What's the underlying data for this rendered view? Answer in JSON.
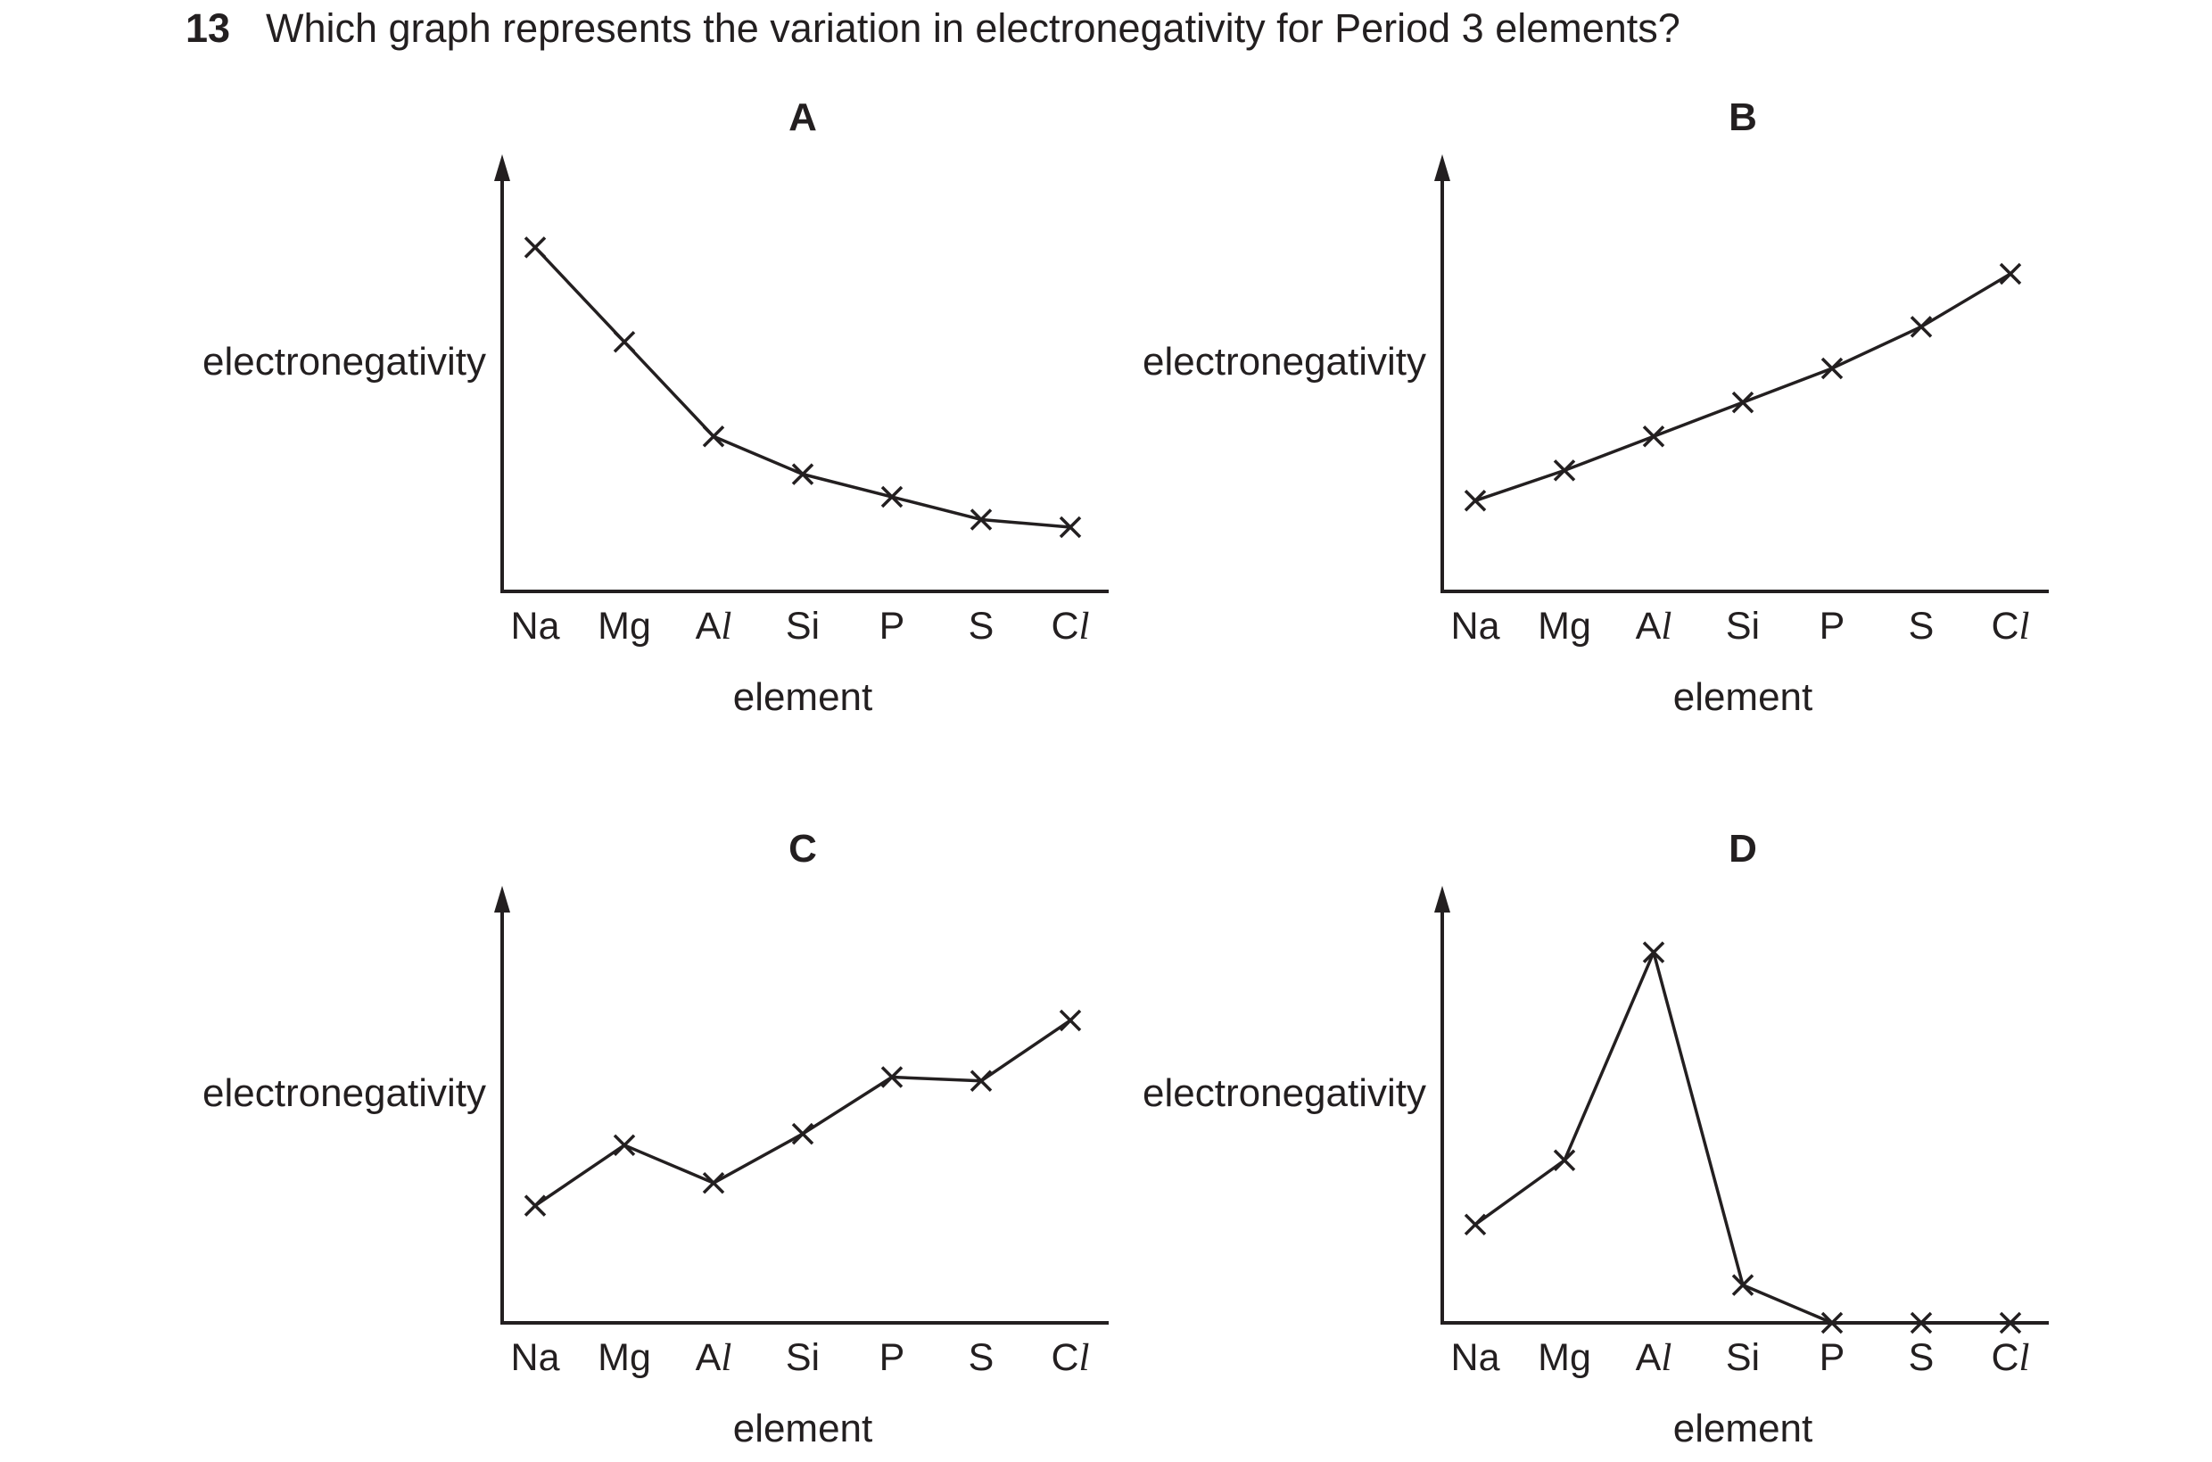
{
  "question": {
    "number": "13",
    "text": "Which graph represents the variation in electronegativity for Period 3 elements?"
  },
  "chart_data": [
    {
      "type": "line",
      "title": "A",
      "ylabel": "electronegativity",
      "xlabel": "element",
      "categories": [
        "Na",
        "Mg",
        "Al",
        "Si",
        "P",
        "S",
        "Cl"
      ],
      "values": [
        9.1,
        6.6,
        4.1,
        3.1,
        2.5,
        1.9,
        1.7
      ],
      "ylim": [
        0,
        10.5
      ]
    },
    {
      "type": "line",
      "title": "B",
      "ylabel": "electronegativity",
      "xlabel": "element",
      "categories": [
        "Na",
        "Mg",
        "Al",
        "Si",
        "P",
        "S",
        "Cl"
      ],
      "values": [
        2.4,
        3.2,
        4.1,
        5.0,
        5.9,
        7.0,
        8.4
      ],
      "ylim": [
        0,
        10.5
      ]
    },
    {
      "type": "line",
      "title": "C",
      "ylabel": "electronegativity",
      "xlabel": "element",
      "categories": [
        "Na",
        "Mg",
        "Al",
        "Si",
        "P",
        "S",
        "Cl"
      ],
      "values": [
        3.1,
        4.7,
        3.7,
        5.0,
        6.5,
        6.4,
        8.0
      ],
      "ylim": [
        0,
        10.5
      ]
    },
    {
      "type": "line",
      "title": "D",
      "ylabel": "electronegativity",
      "xlabel": "element",
      "categories": [
        "Na",
        "Mg",
        "Al",
        "Si",
        "P",
        "S",
        "Cl"
      ],
      "values": [
        2.6,
        4.3,
        9.8,
        1.0,
        0.0,
        0.0,
        0.0
      ],
      "ylim": [
        0,
        10.5
      ]
    }
  ]
}
